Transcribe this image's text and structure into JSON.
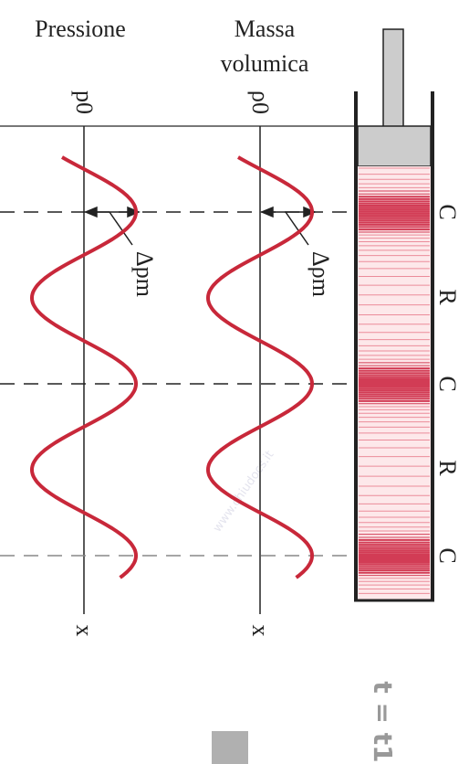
{
  "header": {
    "pressure_title": "Pressione",
    "density_title_line1": "Massa",
    "density_title_line2": "volumica"
  },
  "axes": {
    "pressure_origin": "p0",
    "density_origin": "ρ0",
    "pressure_axis": "x",
    "density_axis": "x"
  },
  "amplitudes": {
    "pressure": "Δpm",
    "density": "Δρm"
  },
  "regions": [
    "C",
    "R",
    "C",
    "R",
    "C"
  ],
  "time_label": "t = t1",
  "watermark": "www.chiudocs.it"
}
